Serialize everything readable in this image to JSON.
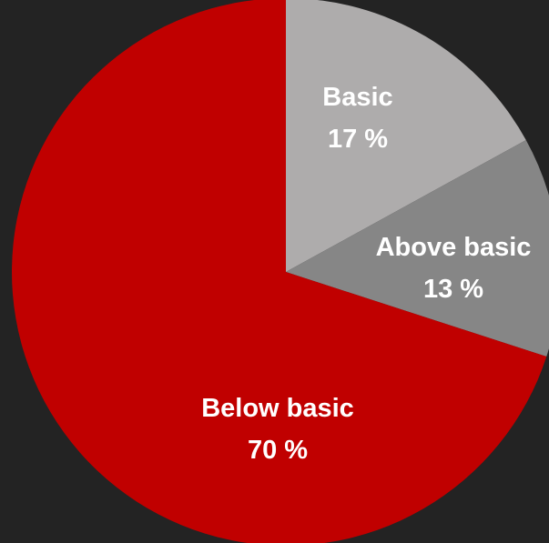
{
  "chart_data": {
    "type": "pie",
    "title": "",
    "slices": [
      {
        "label": "Basic",
        "value": 17,
        "display": "17 %",
        "color": "#aeacac"
      },
      {
        "label": "Above basic",
        "value": 13,
        "display": "13 %",
        "color": "#868686"
      },
      {
        "label": "Below basic",
        "value": 70,
        "display": "70 %",
        "color": "#c00000"
      }
    ],
    "start_angle": "12 o'clock",
    "direction": "clockwise",
    "legend": "none"
  },
  "colors": {
    "background": "#232323",
    "label_text": "#ffffff"
  }
}
